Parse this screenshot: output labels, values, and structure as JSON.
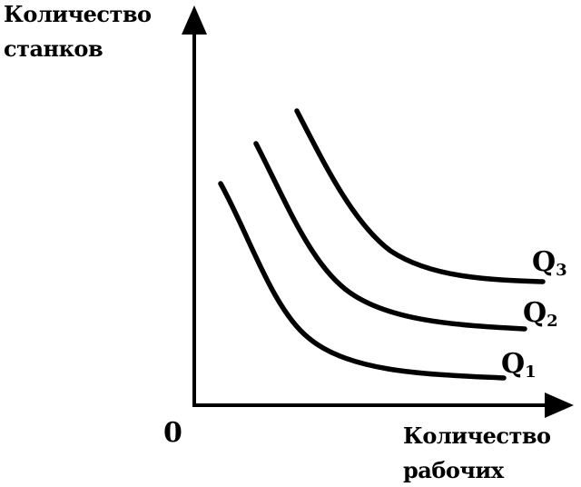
{
  "y_axis": {
    "label_line1": "Количество",
    "label_line2": "станков"
  },
  "x_axis": {
    "label_line1": "Количество",
    "label_line2": "рабочих"
  },
  "origin_label": "0",
  "curves": [
    {
      "label": "Q",
      "subscript": "1"
    },
    {
      "label": "Q",
      "subscript": "2"
    },
    {
      "label": "Q",
      "subscript": "3"
    }
  ],
  "colors": {
    "ink": "#000000",
    "background": "#ffffff"
  }
}
